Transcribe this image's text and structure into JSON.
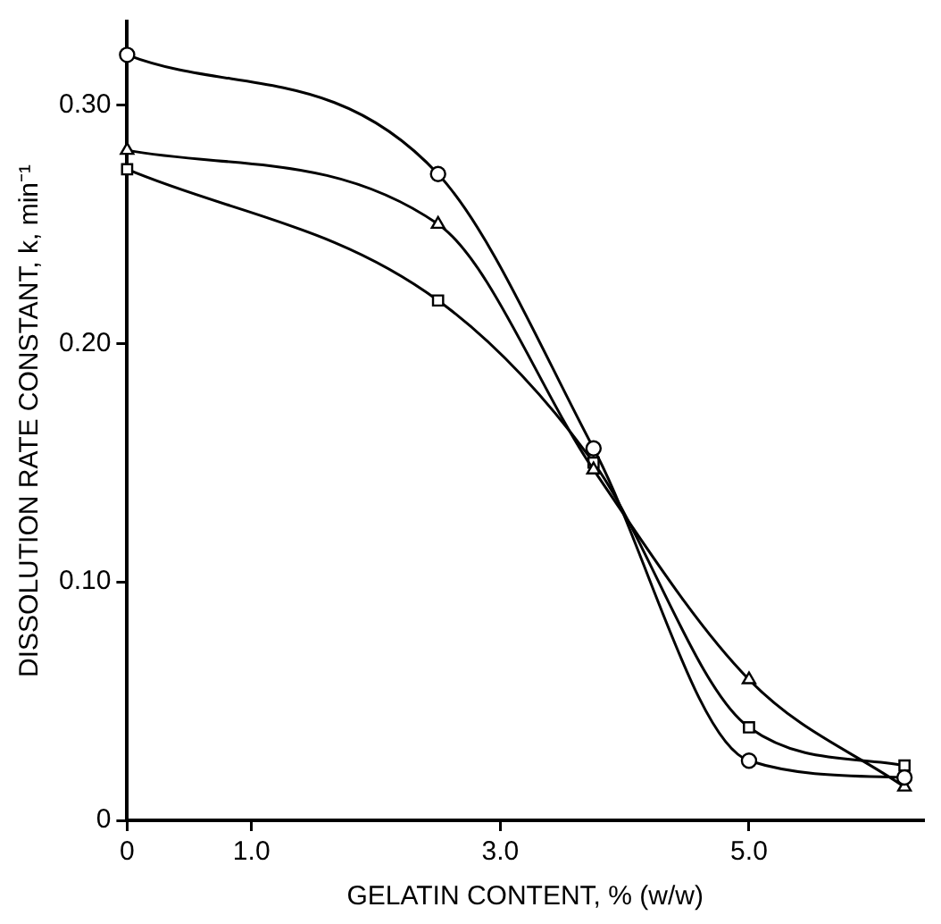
{
  "chart_data": {
    "type": "line",
    "xlabel": "GELATIN CONTENT, % (w/w)",
    "ylabel": "DISSOLUTION RATE CONSTANT, k, min⁻¹",
    "x": [
      0,
      2.5,
      3.75,
      5.0,
      6.25
    ],
    "series": [
      {
        "color": "#000000",
        "marker": "circle",
        "values": [
          0.321,
          0.271,
          0.156,
          0.025,
          0.018
        ]
      },
      {
        "color": "#000000",
        "marker": "triangle",
        "values": [
          0.281,
          0.25,
          0.147,
          0.059,
          0.014
        ]
      },
      {
        "color": "#000000",
        "marker": "square",
        "values": [
          0.273,
          0.218,
          0.15,
          0.039,
          0.023
        ]
      }
    ],
    "xlim": [
      0,
      6.4
    ],
    "ylim": [
      0,
      0.335
    ],
    "xticks": [
      0,
      {
        "value": 1,
        "label": "1.0"
      },
      {
        "value": 3,
        "label": "3.0"
      },
      {
        "value": 5,
        "label": "5.0"
      }
    ],
    "yticks": [
      0,
      {
        "value": 0.1,
        "label": "0.10"
      },
      {
        "value": 0.2,
        "label": "0.20"
      },
      {
        "value": 0.3,
        "label": "0.30"
      }
    ],
    "grid": false,
    "legend": false,
    "line_style": "solid"
  }
}
